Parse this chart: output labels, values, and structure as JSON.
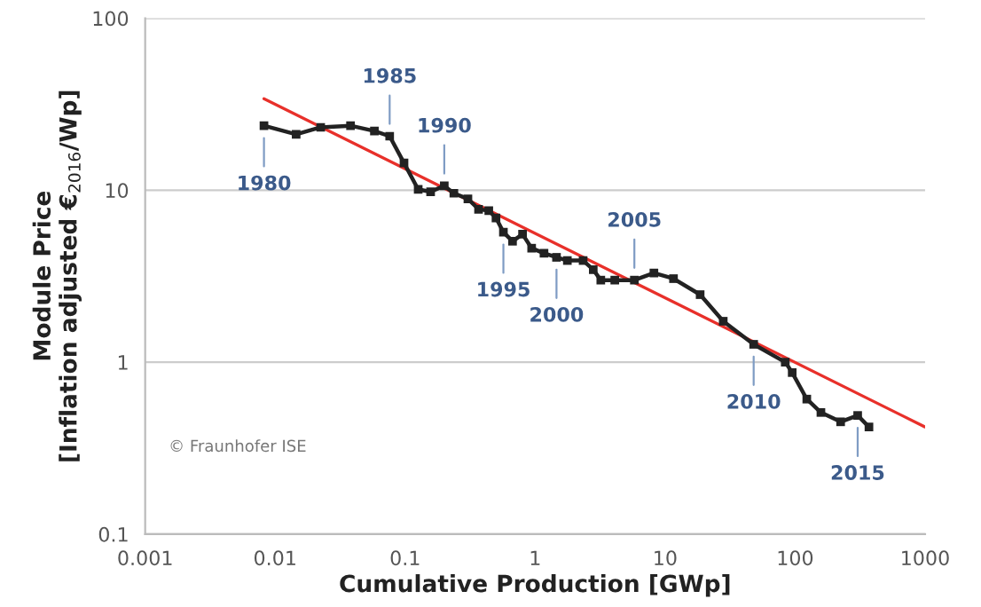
{
  "chart_data": {
    "type": "line",
    "xlabel": "Cumulative Production [GWp]",
    "ylabel": "Module Price\n[Inflation adjusted €$_{2016}$/Wp]",
    "log": "xy",
    "xlim": [
      0.001,
      1000
    ],
    "ylim": [
      0.1,
      100
    ],
    "xticks": [
      0.001,
      0.01,
      0.1,
      1,
      10,
      100,
      1000
    ],
    "yticks": [
      0.1,
      1,
      10,
      100
    ],
    "grid": "y",
    "series": [
      {
        "color": "#222222",
        "marker": "square",
        "x": [
          0.0082,
          0.0145,
          0.0224,
          0.038,
          0.058,
          0.076,
          0.098,
          0.126,
          0.157,
          0.2,
          0.237,
          0.304,
          0.367,
          0.44,
          0.5,
          0.57,
          0.67,
          0.8,
          0.94,
          1.17,
          1.46,
          1.77,
          2.34,
          2.8,
          3.2,
          4.1,
          5.8,
          8.2,
          11.6,
          18.6,
          28,
          48,
          84,
          95,
          123,
          158,
          224,
          303,
          370
        ],
        "values": [
          23.7,
          21.1,
          23.2,
          23.7,
          22.1,
          20.6,
          14.4,
          10.1,
          9.8,
          10.6,
          9.6,
          8.9,
          7.75,
          7.6,
          6.9,
          5.7,
          5.05,
          5.55,
          4.6,
          4.3,
          4.07,
          3.9,
          3.9,
          3.45,
          3.0,
          3.0,
          3.0,
          3.3,
          3.06,
          2.47,
          1.73,
          1.27,
          1.0,
          0.87,
          0.61,
          0.51,
          0.45,
          0.49,
          0.42
        ]
      },
      {
        "color": "#e8302a",
        "marker": "none",
        "x": [
          0.0082,
          1000
        ],
        "values": [
          34,
          0.42
        ]
      }
    ],
    "annotations": [
      {
        "text": "1980",
        "x": 0.0082,
        "y": 23.7
      },
      {
        "text": "1985",
        "x": 0.076,
        "y": 20.6
      },
      {
        "text": "1990",
        "x": 0.2,
        "y": 10.6
      },
      {
        "text": "1995",
        "x": 0.57,
        "y": 5.7
      },
      {
        "text": "2000",
        "x": 1.46,
        "y": 4.07
      },
      {
        "text": "2005",
        "x": 5.8,
        "y": 3.0
      },
      {
        "text": "2010",
        "x": 48,
        "y": 1.27
      },
      {
        "text": "2015",
        "x": 303,
        "y": 0.49
      },
      "© Fraunhofer ISE"
    ]
  }
}
